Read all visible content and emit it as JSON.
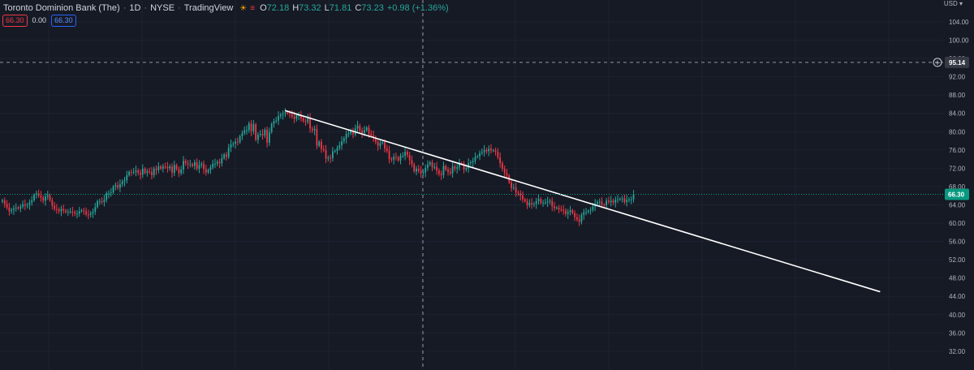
{
  "header": {
    "symbol": "Toronto Dominion Bank (The)",
    "interval": "1D",
    "exchange": "NYSE",
    "source": "TradingView",
    "ohlc": {
      "o_label": "O",
      "o_value": "72.18",
      "h_label": "H",
      "h_value": "73.32",
      "l_label": "L",
      "l_value": "71.81",
      "c_label": "C",
      "c_value": "73.23",
      "change": "+0.98 (+1.36%)"
    },
    "badges": {
      "sell": "66.30",
      "spread": "0.00",
      "buy": "66.30"
    }
  },
  "price_axis": {
    "currency": "USD"
  },
  "colors": {
    "background": "#161a25",
    "up": "#26a69a",
    "down": "#f23645",
    "trendline": "#ffffff",
    "crosshair": "#9598a1",
    "grid": "#1e2230",
    "axis_text": "#b2b5be",
    "last_price_badge": "#089981"
  },
  "chart_data": {
    "type": "candlestick",
    "title": "Toronto Dominion Bank (The)",
    "ylim": [
      30,
      108
    ],
    "y_ticks": [
      "104.00",
      "100.00",
      "96.00",
      "92.00",
      "88.00",
      "84.00",
      "80.00",
      "76.00",
      "72.00",
      "68.00",
      "64.00",
      "60.00",
      "56.00",
      "52.00",
      "48.00",
      "44.00",
      "40.00",
      "36.00",
      "32.00"
    ],
    "last_price": "66.30",
    "crosshair_price": "95.14",
    "trendline": {
      "start": {
        "bar": 125,
        "price": 84.6
      },
      "end": {
        "bar": 388,
        "price": 45.0
      }
    },
    "closes": [
      65.0,
      64.2,
      63.4,
      62.6,
      62.9,
      63.2,
      63.4,
      63.2,
      63.6,
      64.1,
      63.8,
      64.0,
      64.5,
      65.0,
      66.2,
      66.5,
      66.0,
      65.6,
      64.9,
      65.8,
      66.1,
      65.0,
      63.8,
      63.1,
      63.0,
      62.6,
      63.1,
      62.8,
      62.4,
      62.5,
      62.5,
      62.4,
      62.1,
      62.1,
      62.6,
      62.8,
      62.6,
      61.9,
      61.8,
      62.2,
      62.5,
      63.5,
      64.8,
      64.8,
      64.6,
      65.1,
      66.5,
      66.5,
      66.7,
      68.0,
      68.3,
      67.7,
      68.5,
      69.1,
      69.4,
      70.5,
      71.2,
      71.1,
      71.2,
      71.5,
      71.0,
      70.6,
      71.9,
      71.0,
      71.3,
      71.2,
      70.5,
      71.9,
      71.6,
      72.4,
      71.9,
      72.4,
      72.3,
      72.0,
      72.4,
      71.0,
      72.7,
      71.8,
      70.9,
      71.7,
      73.6,
      73.1,
      72.9,
      72.9,
      72.5,
      73.3,
      71.9,
      72.7,
      73.0,
      71.8,
      71.1,
      71.6,
      72.2,
      73.0,
      73.0,
      73.4,
      73.1,
      74.2,
      75.0,
      74.5,
      76.5,
      77.2,
      77.4,
      77.8,
      77.7,
      79.0,
      79.7,
      80.3,
      80.3,
      81.8,
      80.1,
      81.6,
      78.2,
      79.3,
      79.5,
      79.2,
      80.4,
      77.6,
      79.9,
      81.7,
      82.3,
      82.4,
      83.4,
      83.7,
      83.9,
      84.2,
      84.0,
      83.8,
      83.3,
      82.8,
      83.6,
      83.6,
      82.9,
      82.3,
      82.1,
      83.0,
      80.7,
      80.3,
      80.6,
      76.9,
      77.8,
      76.2,
      76.0,
      74.1,
      74.3,
      74.2,
      75.7,
      75.8,
      76.4,
      77.0,
      77.9,
      78.5,
      79.5,
      79.6,
      80.3,
      79.4,
      80.7,
      81.3,
      80.2,
      79.7,
      80.3,
      80.9,
      79.5,
      79.2,
      78.7,
      77.8,
      76.9,
      77.5,
      77.7,
      76.3,
      75.8,
      74.0,
      73.9,
      74.5,
      74.4,
      73.7,
      74.7,
      74.7,
      75.6,
      74.9,
      73.8,
      72.9,
      71.3,
      71.9,
      71.4,
      70.9,
      71.1,
      72.1,
      72.8,
      73.3,
      72.2,
      72.3,
      71.5,
      70.8,
      70.5,
      72.5,
      71.7,
      71.2,
      70.9,
      72.4,
      71.9,
      72.2,
      73.1,
      73.0,
      71.7,
      72.0,
      73.1,
      73.3,
      73.6,
      74.5,
      74.6,
      75.3,
      75.5,
      76.0,
      75.7,
      76.3,
      75.9,
      75.9,
      75.6,
      74.4,
      73.1,
      71.9,
      70.9,
      70.4,
      68.9,
      67.7,
      67.8,
      66.7,
      66.5,
      66.0,
      65.2,
      64.8,
      63.9,
      64.4,
      64.1,
      64.2,
      64.8,
      65.3,
      64.4,
      64.5,
      64.5,
      64.7,
      64.9,
      63.7,
      63.3,
      63.4,
      63.0,
      62.9,
      62.8,
      62.0,
      62.4,
      62.8,
      62.2,
      61.3,
      60.8,
      60.3,
      61.8,
      62.4,
      62.4,
      62.7,
      62.9,
      63.6,
      64.2,
      64.6,
      64.7,
      64.0,
      63.9,
      64.9,
      64.6,
      64.9,
      64.5,
      65.1,
      65.2,
      65.3,
      65.4,
      64.6,
      65.1,
      65.2,
      65.2,
      66.3
    ]
  }
}
